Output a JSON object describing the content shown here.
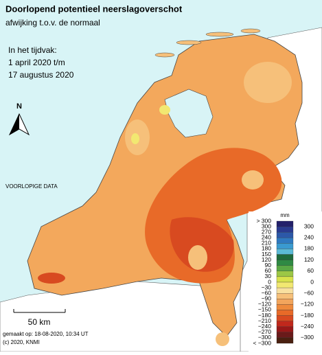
{
  "header": {
    "title": "Doorlopend potentieel neerslagoverschot",
    "subtitle": "afwijking t.o.v. de normaal"
  },
  "period": [
    "In het tijdvak:",
    "1 april 2020 t/m",
    "17 augustus 2020"
  ],
  "north": "N",
  "notice": "VOORLOPIGE DATA",
  "scale": "50 km",
  "footer": {
    "made": "gemaakt op: 18-08-2020, 10:34 UT",
    "copyright": "(c) 2020, KNMI"
  },
  "legend": {
    "unit": "mm",
    "left_labels": [
      "> 300",
      "300",
      "270",
      "240",
      "210",
      "180",
      "150",
      "120",
      "90",
      "60",
      "30",
      "0",
      "−30",
      "−60",
      "−90",
      "−120",
      "−150",
      "−180",
      "−210",
      "−240",
      "−270",
      "−300",
      "< −300"
    ],
    "right_labels": [
      "300",
      "240",
      "180",
      "120",
      "60",
      "0",
      "−60",
      "−120",
      "−180",
      "−240",
      "−300"
    ],
    "colors": [
      "#23206b",
      "#2a3a8f",
      "#2c58a8",
      "#2f79c0",
      "#3a9ad0",
      "#5bbad6",
      "#1f6a3c",
      "#2f8a44",
      "#5aa845",
      "#9cc745",
      "#d8e24c",
      "#f2e871",
      "#f8e0a0",
      "#f6c07a",
      "#f2a55c",
      "#ee8a3c",
      "#e86a28",
      "#d84a20",
      "#c0281c",
      "#981818",
      "#6a1a1a",
      "#4a2010"
    ]
  }
}
